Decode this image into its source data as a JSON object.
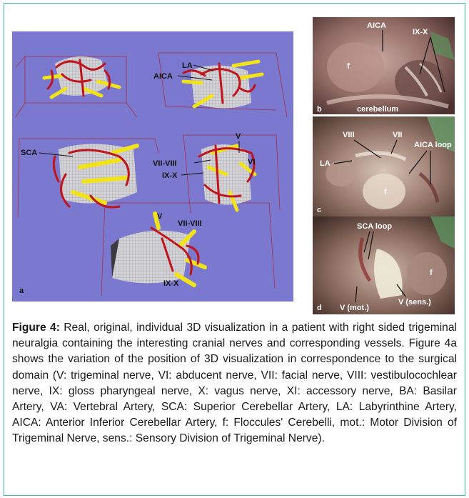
{
  "panel_a": {
    "label": "a",
    "annotations": [
      "LA",
      "AICA",
      "SCA",
      "V",
      "VII-VIII",
      "VI",
      "IX-X",
      "V",
      "VII-VIII",
      "IX-X"
    ]
  },
  "panel_b": {
    "label": "b",
    "annotations": [
      "AICA",
      "IX-X",
      "f",
      "cerebellum"
    ]
  },
  "panel_c": {
    "label": "c",
    "annotations": [
      "VIII",
      "VII",
      "AICA loop",
      "LA",
      "f"
    ]
  },
  "panel_d": {
    "label": "d",
    "annotations": [
      "SCA loop",
      "f",
      "V (mot.)",
      "V (sens.)"
    ]
  },
  "caption": {
    "figure_label": "Figure 4:",
    "text": " Real, original, individual 3D visualization in a patient with right sided trigeminal neuralgia containing the interesting cranial nerves and corresponding vessels. Figure 4a shows the variation of the position of 3D visualization in correspondence to the surgical domain (V: trigeminal nerve, VI: abducent nerve, VII: facial nerve, VIII: vestibulocochlear nerve, IX: gloss pharyngeal nerve, X: vagus nerve, XI: accessory nerve, BA: Basilar Artery, VA: Vertebral Artery, SCA: Superior Cerebellar Artery, LA: Labyrinthine Artery, AICA: Anterior Inferior Cerebellar Artery, f: Floccules' Cerebelli, mot.: Motor Division of Trigeminal Nerve, sens.: Sensory Division of  Trigeminal Nerve)."
  },
  "colors": {
    "frame": "#3fb8a0",
    "panel_a_bg": "#7b78d0",
    "vessel": "#c0141c",
    "nerve": "#f2e21a",
    "brainstem": "#c8c8cc"
  }
}
